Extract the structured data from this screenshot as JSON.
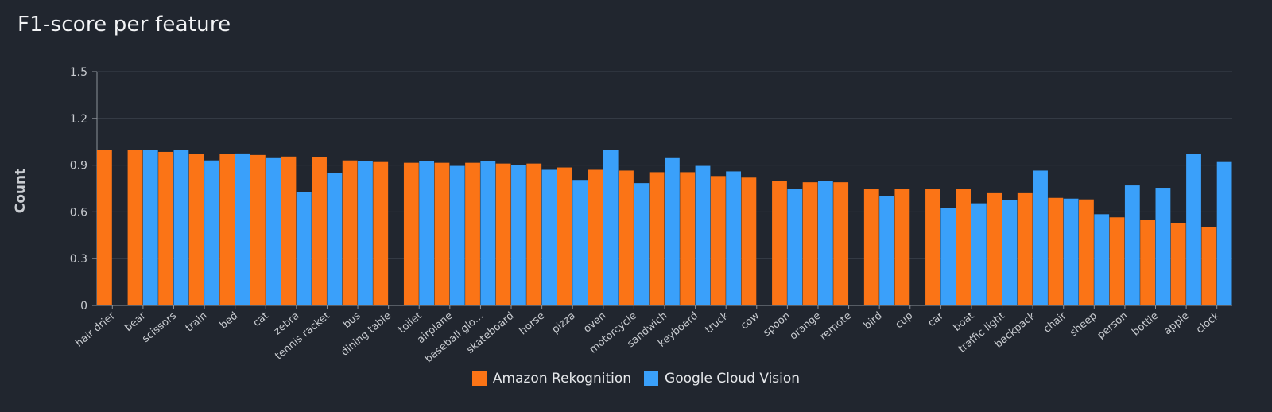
{
  "title": "F1-score per feature",
  "colors": {
    "background": "#21262f",
    "amazon": "#fb7416",
    "google": "#3aa0fa",
    "grid": "#3a414c",
    "text": "#c9ccd1"
  },
  "chart_data": {
    "type": "bar",
    "title": "F1-score per feature",
    "xlabel": "",
    "ylabel": "Count",
    "ylim": [
      0,
      1.5
    ],
    "yticks": [
      "0",
      "0.3",
      "0.6",
      "0.9",
      "1.2",
      "1.5"
    ],
    "grid": true,
    "legend_position": "bottom-center",
    "categories": [
      "hair drier",
      "bear",
      "scissors",
      "train",
      "bed",
      "cat",
      "zebra",
      "tennis racket",
      "bus",
      "dining table",
      "toilet",
      "airplane",
      "baseball glo...",
      "skateboard",
      "horse",
      "pizza",
      "oven",
      "motorcycle",
      "sandwich",
      "keyboard",
      "truck",
      "cow",
      "spoon",
      "orange",
      "remote",
      "bird",
      "cup",
      "car",
      "boat",
      "traffic light",
      "backpack",
      "chair",
      "sheep",
      "person",
      "bottle",
      "apple",
      "clock"
    ],
    "series": [
      {
        "name": "Amazon Rekognition",
        "color": "#fb7416",
        "values": [
          1.0,
          1.0,
          0.985,
          0.97,
          0.97,
          0.965,
          0.955,
          0.95,
          0.93,
          0.92,
          0.915,
          0.915,
          0.915,
          0.91,
          0.91,
          0.885,
          0.87,
          0.865,
          0.855,
          0.855,
          0.83,
          0.82,
          0.8,
          0.79,
          0.79,
          0.75,
          0.75,
          0.745,
          0.745,
          0.72,
          0.72,
          0.69,
          0.68,
          0.565,
          0.55,
          0.53,
          0.5
        ]
      },
      {
        "name": "Google Cloud Vision",
        "color": "#3aa0fa",
        "values": [
          0,
          1.0,
          1.0,
          0.93,
          0.975,
          0.945,
          0.725,
          0.85,
          0.925,
          0,
          0.925,
          0.895,
          0.925,
          0.9,
          0.87,
          0.805,
          1.0,
          0.785,
          0.945,
          0.895,
          0.86,
          0,
          0.745,
          0.8,
          0,
          0.7,
          0,
          0.625,
          0.655,
          0.675,
          0.865,
          0.685,
          0.585,
          0.77,
          0.755,
          0.97,
          0.92
        ]
      }
    ]
  },
  "legend": [
    {
      "label": "Amazon Rekognition",
      "color": "#fb7416"
    },
    {
      "label": "Google Cloud Vision",
      "color": "#3aa0fa"
    }
  ]
}
